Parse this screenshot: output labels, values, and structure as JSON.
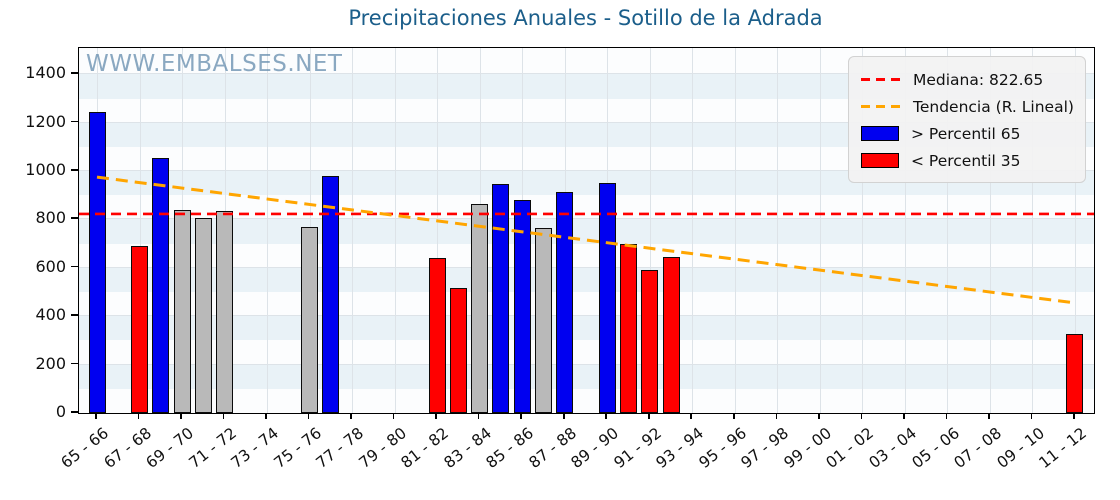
{
  "title": "Precipitaciones Anuales - Sotillo de la Adrada",
  "watermark": "WWW.EMBALSES.NET",
  "legend": {
    "median_label": "Mediana: 822.65",
    "trend_label": "Tendencia (R. Lineal)",
    "high_label": "> Percentil 65",
    "low_label": "< Percentil 35"
  },
  "colors": {
    "high_bar": "#0000f0",
    "low_bar": "#ff0000",
    "mid_bar": "#b9b9b9",
    "median_line": "#ff0000",
    "trend_line": "#ffa500",
    "title_text": "#1b5e8a",
    "watermark_text": "#648cac"
  },
  "chart_data": {
    "type": "bar",
    "title": "Precipitaciones Anuales - Sotillo de la Adrada",
    "ylabel": "",
    "xlabel": "",
    "ylim": [
      0,
      1508
    ],
    "yticks": [
      0,
      200,
      400,
      600,
      800,
      1000,
      1200,
      1400
    ],
    "xtick_labels": [
      "65 - 66",
      "67 - 68",
      "69 - 70",
      "71 - 72",
      "73 - 74",
      "75 - 76",
      "77 - 78",
      "79 - 80",
      "81 - 82",
      "83 - 84",
      "85 - 86",
      "87 - 88",
      "89 - 90",
      "91 - 92",
      "93 - 94",
      "95 - 96",
      "97 - 98",
      "99 - 00",
      "01 - 02",
      "03 - 04",
      "05 - 06",
      "07 - 08",
      "09 - 10",
      "11 - 12"
    ],
    "season_span": {
      "first": "65 - 66",
      "last": "11 - 12",
      "n_slots": 47
    },
    "median": 822.65,
    "trend_linear": {
      "start_season": "65 - 66",
      "start_value": 975,
      "end_season": "11 - 12",
      "end_value": 455
    },
    "category_meaning": {
      "high": "> Percentil 65",
      "low": "< Percentil 35",
      "mid": "Percentil 35-65"
    },
    "bars": [
      {
        "season": "65 - 66",
        "index": 0,
        "value": 1245,
        "category": "high"
      },
      {
        "season": "67 - 68",
        "index": 2,
        "value": 690,
        "category": "low"
      },
      {
        "season": "68 - 69",
        "index": 3,
        "value": 1055,
        "category": "high"
      },
      {
        "season": "69 - 70",
        "index": 4,
        "value": 840,
        "category": "mid"
      },
      {
        "season": "70 - 71",
        "index": 5,
        "value": 805,
        "category": "mid"
      },
      {
        "season": "71 - 72",
        "index": 6,
        "value": 833,
        "category": "mid"
      },
      {
        "season": "75 - 76",
        "index": 10,
        "value": 770,
        "category": "mid"
      },
      {
        "season": "76 - 77",
        "index": 11,
        "value": 980,
        "category": "high"
      },
      {
        "season": "81 - 82",
        "index": 16,
        "value": 640,
        "category": "low"
      },
      {
        "season": "82 - 83",
        "index": 17,
        "value": 515,
        "category": "low"
      },
      {
        "season": "83 - 84",
        "index": 18,
        "value": 865,
        "category": "mid"
      },
      {
        "season": "84 - 85",
        "index": 19,
        "value": 945,
        "category": "high"
      },
      {
        "season": "85 - 86",
        "index": 20,
        "value": 880,
        "category": "high"
      },
      {
        "season": "86 - 87",
        "index": 21,
        "value": 765,
        "category": "mid"
      },
      {
        "season": "87 - 88",
        "index": 22,
        "value": 915,
        "category": "high"
      },
      {
        "season": "89 - 90",
        "index": 24,
        "value": 950,
        "category": "high"
      },
      {
        "season": "90 - 91",
        "index": 25,
        "value": 698,
        "category": "low"
      },
      {
        "season": "91 - 92",
        "index": 26,
        "value": 590,
        "category": "low"
      },
      {
        "season": "92 - 93",
        "index": 27,
        "value": 645,
        "category": "low"
      },
      {
        "season": "11 - 12",
        "index": 46,
        "value": 325,
        "category": "low"
      }
    ],
    "legend_position": "upper right",
    "grid": true
  }
}
